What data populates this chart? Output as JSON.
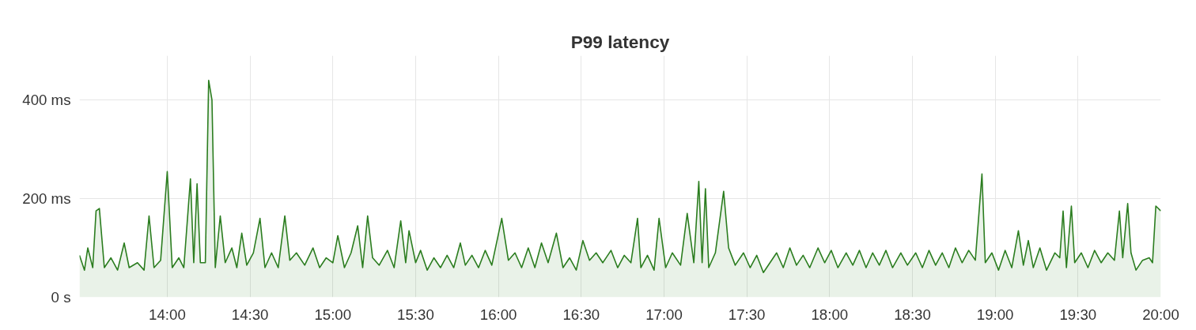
{
  "chart_data": {
    "type": "area",
    "title": "P99 latency",
    "x": [
      13.47,
      13.5,
      13.52,
      13.55,
      13.57,
      13.59,
      13.62,
      13.66,
      13.7,
      13.74,
      13.77,
      13.82,
      13.86,
      13.89,
      13.92,
      13.96,
      14.0,
      14.03,
      14.07,
      14.1,
      14.14,
      14.16,
      14.18,
      14.2,
      14.23,
      14.25,
      14.27,
      14.29,
      14.32,
      14.35,
      14.39,
      14.42,
      14.45,
      14.48,
      14.52,
      14.56,
      14.59,
      14.63,
      14.67,
      14.71,
      14.74,
      14.78,
      14.83,
      14.88,
      14.92,
      14.96,
      15.0,
      15.03,
      15.07,
      15.11,
      15.15,
      15.18,
      15.21,
      15.24,
      15.28,
      15.33,
      15.37,
      15.41,
      15.44,
      15.46,
      15.5,
      15.53,
      15.57,
      15.61,
      15.65,
      15.69,
      15.73,
      15.77,
      15.8,
      15.84,
      15.88,
      15.92,
      15.96,
      16.02,
      16.06,
      16.1,
      16.14,
      16.18,
      16.22,
      16.26,
      16.3,
      16.35,
      16.39,
      16.43,
      16.47,
      16.51,
      16.55,
      16.59,
      16.63,
      16.68,
      16.72,
      16.76,
      16.8,
      16.84,
      16.86,
      16.9,
      16.94,
      16.97,
      17.01,
      17.05,
      17.1,
      17.14,
      17.18,
      17.21,
      17.23,
      17.25,
      17.27,
      17.31,
      17.36,
      17.39,
      17.43,
      17.48,
      17.52,
      17.56,
      17.6,
      17.64,
      17.68,
      17.72,
      17.76,
      17.8,
      17.84,
      17.88,
      17.93,
      17.97,
      18.01,
      18.05,
      18.1,
      18.14,
      18.18,
      18.22,
      18.26,
      18.3,
      18.34,
      18.38,
      18.43,
      18.47,
      18.52,
      18.56,
      18.6,
      18.64,
      18.68,
      18.72,
      18.76,
      18.8,
      18.84,
      18.88,
      18.92,
      18.94,
      18.98,
      19.02,
      19.06,
      19.1,
      19.14,
      19.17,
      19.2,
      19.23,
      19.27,
      19.31,
      19.36,
      19.39,
      19.41,
      19.43,
      19.46,
      19.48,
      19.52,
      19.56,
      19.6,
      19.64,
      19.68,
      19.72,
      19.75,
      19.77,
      19.8,
      19.82,
      19.85,
      19.89,
      19.93,
      19.95,
      19.97,
      20.0
    ],
    "series": [
      {
        "color": "#2b7d1f",
        "values": [
          85,
          55,
          100,
          60,
          175,
          180,
          60,
          80,
          55,
          110,
          60,
          70,
          55,
          165,
          60,
          75,
          255,
          60,
          80,
          60,
          240,
          70,
          230,
          70,
          70,
          440,
          400,
          60,
          165,
          70,
          100,
          60,
          130,
          65,
          90,
          160,
          60,
          90,
          60,
          165,
          75,
          90,
          65,
          100,
          60,
          80,
          70,
          125,
          60,
          90,
          145,
          60,
          165,
          80,
          65,
          95,
          60,
          155,
          70,
          135,
          70,
          95,
          55,
          80,
          60,
          85,
          60,
          110,
          65,
          85,
          60,
          95,
          65,
          160,
          75,
          90,
          60,
          100,
          60,
          110,
          70,
          130,
          60,
          80,
          55,
          115,
          75,
          90,
          70,
          95,
          60,
          85,
          70,
          160,
          60,
          85,
          55,
          160,
          60,
          90,
          65,
          170,
          70,
          235,
          70,
          220,
          60,
          90,
          215,
          100,
          65,
          90,
          60,
          85,
          50,
          70,
          90,
          60,
          100,
          65,
          85,
          60,
          100,
          70,
          95,
          60,
          90,
          65,
          95,
          60,
          90,
          65,
          95,
          60,
          90,
          65,
          90,
          60,
          95,
          65,
          90,
          60,
          100,
          70,
          95,
          75,
          250,
          70,
          90,
          55,
          95,
          60,
          135,
          65,
          115,
          60,
          100,
          55,
          90,
          80,
          175,
          60,
          185,
          70,
          90,
          60,
          95,
          70,
          90,
          75,
          175,
          80,
          190,
          90,
          55,
          75,
          80,
          70,
          185,
          175
        ]
      }
    ],
    "xlim": [
      13.47,
      20.0
    ],
    "xticks": [
      {
        "value": 14,
        "label": "14:00"
      },
      {
        "value": 14.5,
        "label": "14:30"
      },
      {
        "value": 15,
        "label": "15:00"
      },
      {
        "value": 15.5,
        "label": "15:30"
      },
      {
        "value": 16,
        "label": "16:00"
      },
      {
        "value": 16.5,
        "label": "16:30"
      },
      {
        "value": 17,
        "label": "17:00"
      },
      {
        "value": 17.5,
        "label": "17:30"
      },
      {
        "value": 18,
        "label": "18:00"
      },
      {
        "value": 18.5,
        "label": "18:30"
      },
      {
        "value": 19,
        "label": "19:00"
      },
      {
        "value": 19.5,
        "label": "19:30"
      },
      {
        "value": 20,
        "label": "20:00"
      }
    ],
    "ylim": [
      0,
      490
    ],
    "yticks": [
      {
        "value": 0,
        "label": "0 s"
      },
      {
        "value": 200,
        "label": "200 ms"
      },
      {
        "value": 400,
        "label": "400 ms"
      }
    ],
    "grid": true
  }
}
